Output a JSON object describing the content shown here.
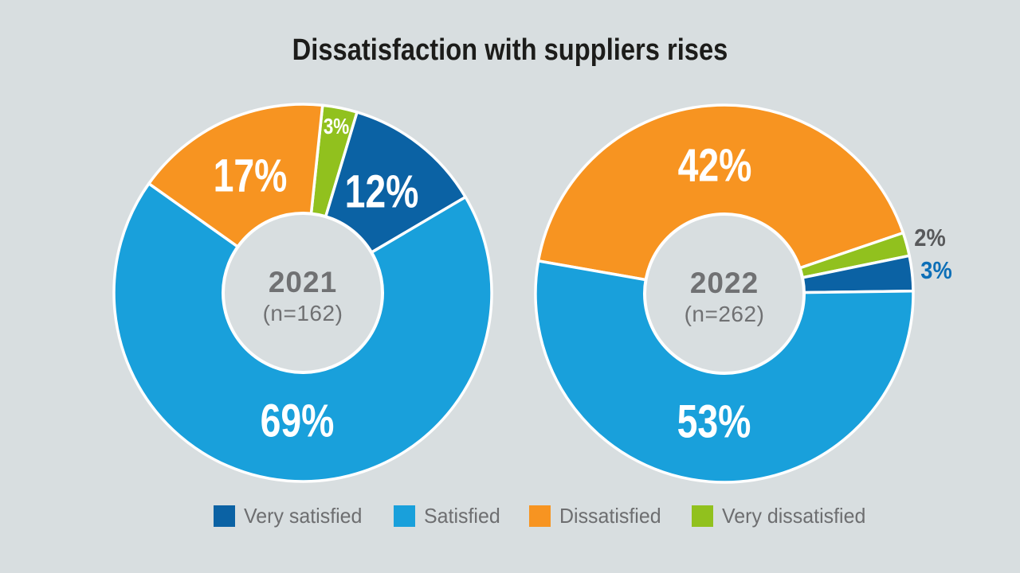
{
  "title": "Dissatisfaction with suppliers rises",
  "colors": {
    "very_satisfied": "#0B62A4",
    "satisfied": "#19A0DB",
    "dissatisfied": "#F79421",
    "very_dissatisfied": "#91C11E",
    "background": "#D8DEE0",
    "title_text": "#1C1C1A",
    "center_text": "#707173",
    "legend_text": "#6D6E70",
    "inside_label": "#FFFFFF",
    "outside_label_gray": "#58595B",
    "outside_label_blue": "#0D6FB7",
    "slice_border": "#FFFFFF"
  },
  "legend": [
    {
      "key": "very_satisfied",
      "label": "Very satisfied"
    },
    {
      "key": "satisfied",
      "label": "Satisfied"
    },
    {
      "key": "dissatisfied",
      "label": "Dissatisfied"
    },
    {
      "key": "very_dissatisfied",
      "label": "Very dissatisfied"
    }
  ],
  "legend_position": "bottom",
  "chart_data": [
    {
      "type": "pie",
      "subtype": "donut",
      "center_label": "2021",
      "center_sublabel": "(n=162)",
      "start_angle_deg": 6,
      "clockwise": true,
      "slices": [
        {
          "name": "Very dissatisfied",
          "value_pct": 3,
          "display": "3%",
          "color_key": "very_dissatisfied",
          "label_placement": "inside-edge",
          "label_color_key": "inside_label"
        },
        {
          "name": "Very satisfied",
          "value_pct": 12,
          "display": "12%",
          "color_key": "very_satisfied",
          "label_placement": "inside",
          "label_color_key": "inside_label"
        },
        {
          "name": "Satisfied",
          "value_pct": 69,
          "display": "69%",
          "color_key": "satisfied",
          "label_placement": "inside",
          "label_color_key": "inside_label"
        },
        {
          "name": "Dissatisfied",
          "value_pct": 17,
          "display": "17%",
          "color_key": "dissatisfied",
          "label_placement": "inside",
          "label_color_key": "inside_label"
        }
      ]
    },
    {
      "type": "pie",
      "subtype": "donut",
      "center_label": "2022",
      "center_sublabel": "(n=262)",
      "start_angle_deg": -80,
      "clockwise": true,
      "slices": [
        {
          "name": "Dissatisfied",
          "value_pct": 42,
          "display": "42%",
          "color_key": "dissatisfied",
          "label_placement": "inside",
          "label_color_key": "inside_label"
        },
        {
          "name": "Very dissatisfied",
          "value_pct": 2,
          "display": "2%",
          "color_key": "very_dissatisfied",
          "label_placement": "outside",
          "label_color_key": "outside_label_gray"
        },
        {
          "name": "Very satisfied",
          "value_pct": 3,
          "display": "3%",
          "color_key": "very_satisfied",
          "label_placement": "outside",
          "label_color_key": "outside_label_blue"
        },
        {
          "name": "Satisfied",
          "value_pct": 53,
          "display": "53%",
          "color_key": "satisfied",
          "label_placement": "inside",
          "label_color_key": "inside_label"
        }
      ]
    }
  ]
}
